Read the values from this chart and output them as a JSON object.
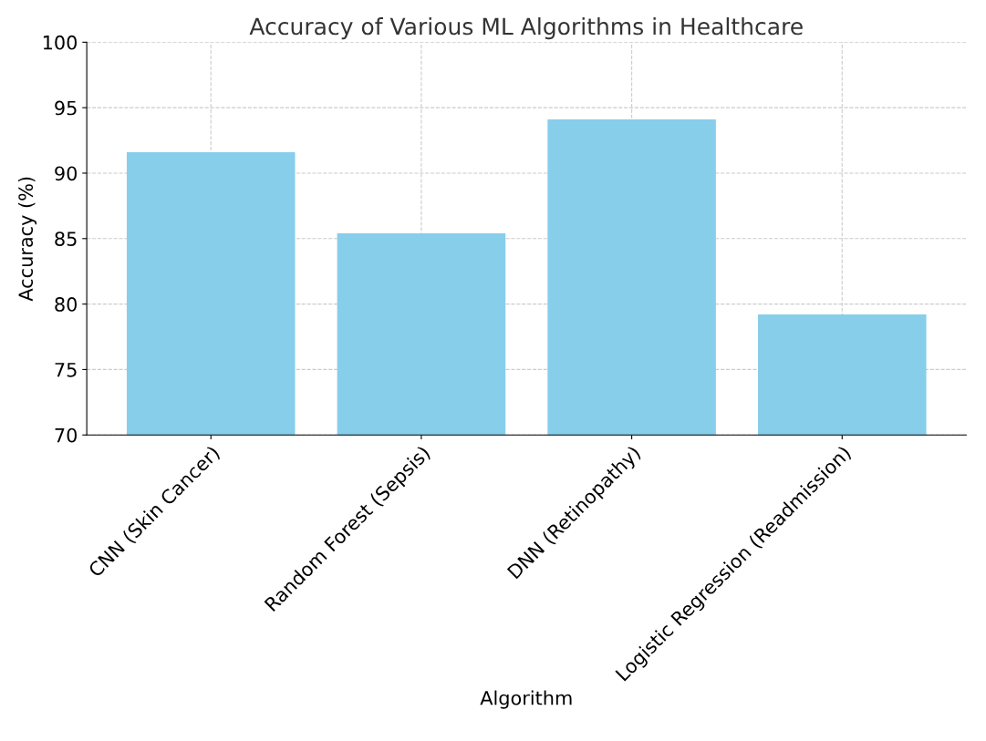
{
  "chart_data": {
    "type": "bar",
    "title": "Accuracy of Various ML Algorithms in Healthcare",
    "xlabel": "Algorithm",
    "ylabel": "Accuracy (%)",
    "categories": [
      "CNN (Skin Cancer)",
      "Random Forest (Sepsis)",
      "DNN (Retinopathy)",
      "Logistic Regression (Readmission)"
    ],
    "values": [
      91.6,
      85.4,
      94.1,
      79.2
    ],
    "color": "#87ceeb",
    "ylim": [
      70,
      100
    ],
    "yticks": [
      70,
      75,
      80,
      85,
      90,
      95,
      100
    ],
    "grid": true
  }
}
